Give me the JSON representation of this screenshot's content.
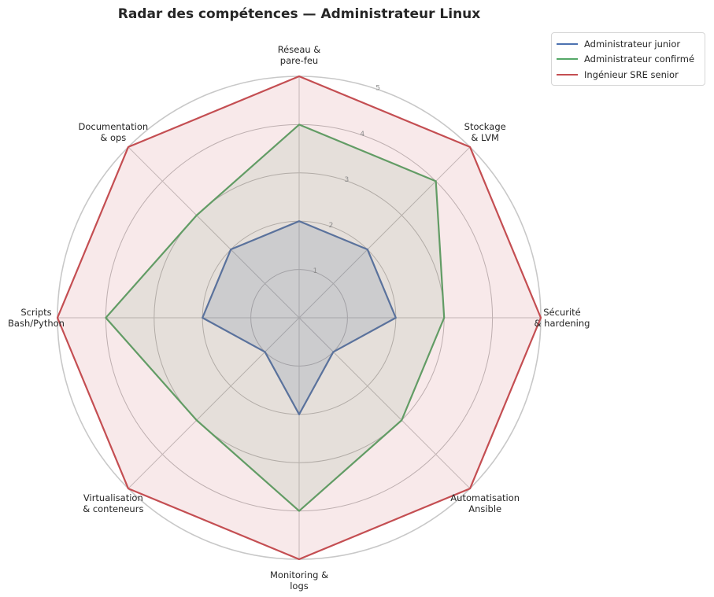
{
  "chart_data": {
    "type": "radar",
    "title": "Radar des compétences — Administrateur Linux",
    "axes": [
      [
        "Réseau &",
        "pare-feu"
      ],
      [
        "Stockage",
        "& LVM"
      ],
      [
        "Sécurité",
        "& hardening"
      ],
      [
        "Automatisation",
        "Ansible"
      ],
      [
        "Monitoring &",
        "logs"
      ],
      [
        "Virtualisation",
        "& conteneurs"
      ],
      [
        "Scripts",
        "Bash/Python"
      ],
      [
        "Documentation",
        "& ops"
      ]
    ],
    "radial_ticks": [
      "1",
      "2",
      "3",
      "4",
      "5"
    ],
    "rlim": [
      0,
      5
    ],
    "series": [
      {
        "name": "Administrateur junior",
        "color": "#4c72b0",
        "values": [
          2,
          2,
          2,
          1,
          2,
          1,
          2,
          2
        ]
      },
      {
        "name": "Administrateur confirmé",
        "color": "#55a868",
        "values": [
          4,
          4,
          3,
          3,
          4,
          3,
          4,
          3
        ]
      },
      {
        "name": "Ingénieur SRE senior",
        "color": "#c44e52",
        "values": [
          5,
          5,
          5,
          5,
          5,
          5,
          5,
          5
        ]
      }
    ],
    "legend_position": "top-right",
    "grid": true
  }
}
